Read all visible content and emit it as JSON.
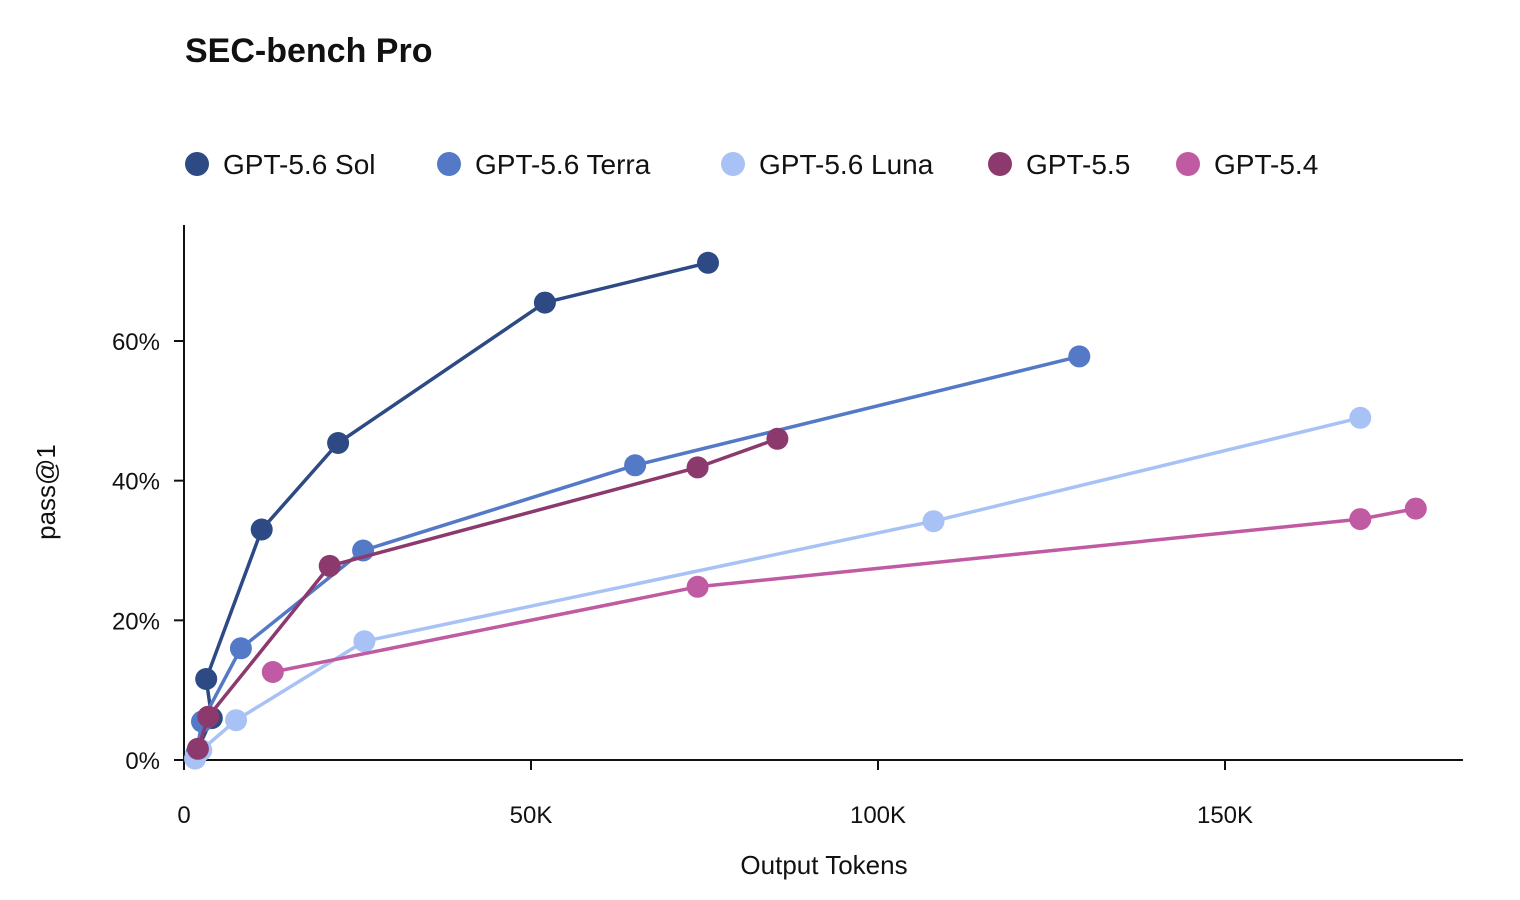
{
  "chart_data": {
    "type": "line",
    "title": "SEC-bench Pro",
    "xlabel": "Output Tokens",
    "ylabel": "pass@1",
    "xlim": [
      0,
      185000
    ],
    "ylim": [
      0,
      77
    ],
    "x_ticks": [
      {
        "value": 0,
        "label": "0"
      },
      {
        "value": 50000,
        "label": "50K"
      },
      {
        "value": 100000,
        "label": "100K"
      },
      {
        "value": 150000,
        "label": "150K"
      }
    ],
    "y_ticks": [
      {
        "value": 0,
        "label": "0%"
      },
      {
        "value": 20,
        "label": "20%"
      },
      {
        "value": 40,
        "label": "40%"
      },
      {
        "value": 60,
        "label": "60%"
      }
    ],
    "grid": false,
    "legend_position": "top-left",
    "series": [
      {
        "name": "GPT-5.6 Sol",
        "color": "#2d4a85",
        "points": [
          [
            2000,
            1.5
          ],
          [
            4000,
            6
          ],
          [
            3200,
            11.6
          ],
          [
            11200,
            33
          ],
          [
            22200,
            45.4
          ],
          [
            52000,
            65.5
          ],
          [
            75500,
            71.2
          ]
        ]
      },
      {
        "name": "GPT-5.6 Terra",
        "color": "#5479c6",
        "points": [
          [
            1800,
            1
          ],
          [
            2600,
            5.5
          ],
          [
            8200,
            16
          ],
          [
            25800,
            30
          ],
          [
            65000,
            42.2
          ],
          [
            129000,
            57.8
          ]
        ]
      },
      {
        "name": "GPT-5.6 Luna",
        "color": "#a8c2f5",
        "points": [
          [
            1600,
            0.2
          ],
          [
            2500,
            1.4
          ],
          [
            7500,
            5.7
          ],
          [
            26000,
            17
          ],
          [
            108000,
            34.2
          ],
          [
            169500,
            49
          ]
        ]
      },
      {
        "name": "GPT-5.5",
        "color": "#8c3a6e",
        "points": [
          [
            2000,
            1.6
          ],
          [
            3500,
            6.2
          ],
          [
            21000,
            27.8
          ],
          [
            74000,
            41.9
          ],
          [
            85500,
            46
          ]
        ]
      },
      {
        "name": "GPT-5.4",
        "color": "#c05aa2",
        "points": [
          [
            12800,
            12.6
          ],
          [
            74000,
            24.8
          ],
          [
            169500,
            34.5
          ],
          [
            177500,
            36
          ]
        ]
      }
    ]
  }
}
